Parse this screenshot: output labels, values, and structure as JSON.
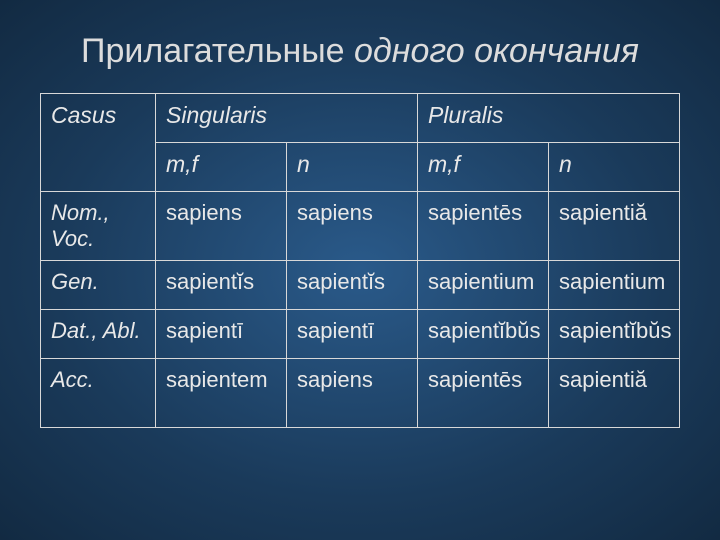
{
  "title_plain": "Прилагательные ",
  "title_italic": "одного окончания",
  "table": {
    "type": "table",
    "background_color": "transparent",
    "border_color": "#d8d8d8",
    "text_color": "#e8e8e8",
    "header_fontsize": 23,
    "cell_fontsize": 22,
    "col_widths_pct": [
      18,
      20.5,
      20.5,
      20.5,
      20.5
    ],
    "header_row1": {
      "casus": "Casus",
      "sing": "Singularis",
      "plur": "Pluralis"
    },
    "header_row2": {
      "mf1": "m,f",
      "n1": "n",
      "mf2": "m,f",
      "n2": " n"
    },
    "rows": [
      {
        "case": "Nom., Voc.",
        "c": [
          "sapiens",
          "sapiens",
          "sapientēs",
          "sapientiă"
        ]
      },
      {
        "case": "Gen.",
        "c": [
          "sapientĭs",
          "sapientĭs",
          "sapientium",
          "sapientium"
        ]
      },
      {
        "case": "Dat., Abl.",
        "c": [
          "sapientī",
          "sapientī",
          "sapientĭbŭs",
          "sapientĭbŭs"
        ]
      },
      {
        "case": "Acc.",
        "c": [
          "sapientem",
          "sapiens",
          "sapientēs",
          "sapientiă"
        ]
      }
    ]
  }
}
